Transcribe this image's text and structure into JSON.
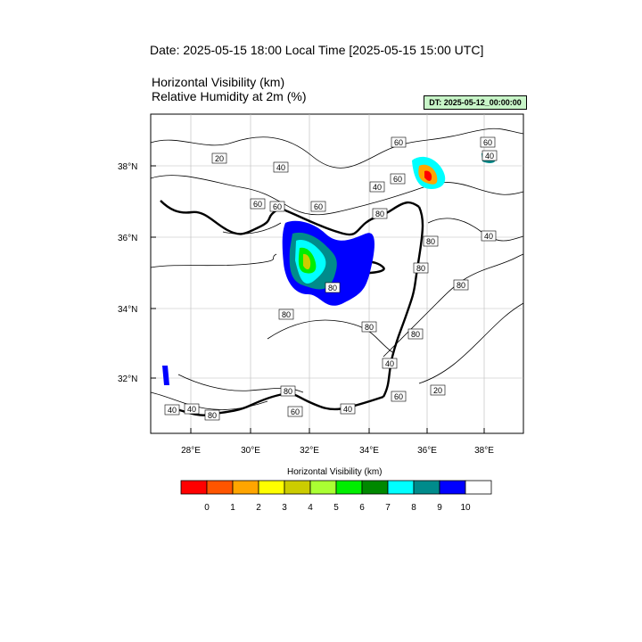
{
  "header": {
    "date_line": "Date: 2025-05-15  18:00 Local Time [2025-05-15  15:00 UTC]",
    "variable_1": "Horizontal Visibility   (km)",
    "variable_2": "Relative Humidity at 2m   (%)",
    "dt_badge": "DT: 2025-05-12_00:00:00"
  },
  "map": {
    "lat_labels": [
      "38°N",
      "36°N",
      "34°N",
      "32°N"
    ],
    "lon_labels": [
      "28°E",
      "30°E",
      "32°E",
      "34°E",
      "36°E",
      "38°E"
    ],
    "contour_labels": [
      "20",
      "60",
      "60",
      "60",
      "40",
      "60",
      "80",
      "60",
      "40",
      "80",
      "80",
      "40",
      "80",
      "80",
      "80",
      "80",
      "40",
      "20",
      "60",
      "40",
      "40",
      "80",
      "60",
      "40",
      "80",
      "80",
      "40",
      "60"
    ]
  },
  "colorbar": {
    "title": "Horizontal Visibility  (km)",
    "colors": [
      "#ff0000",
      "#ff5500",
      "#ffa500",
      "#ffff00",
      "#cccc00",
      "#aaff33",
      "#00ee00",
      "#008800",
      "#00ffff",
      "#008b8b",
      "#0000ff",
      "#ffffff"
    ],
    "ticks": [
      "0",
      "1",
      "2",
      "3",
      "4",
      "5",
      "6",
      "7",
      "8",
      "9",
      "10"
    ]
  }
}
